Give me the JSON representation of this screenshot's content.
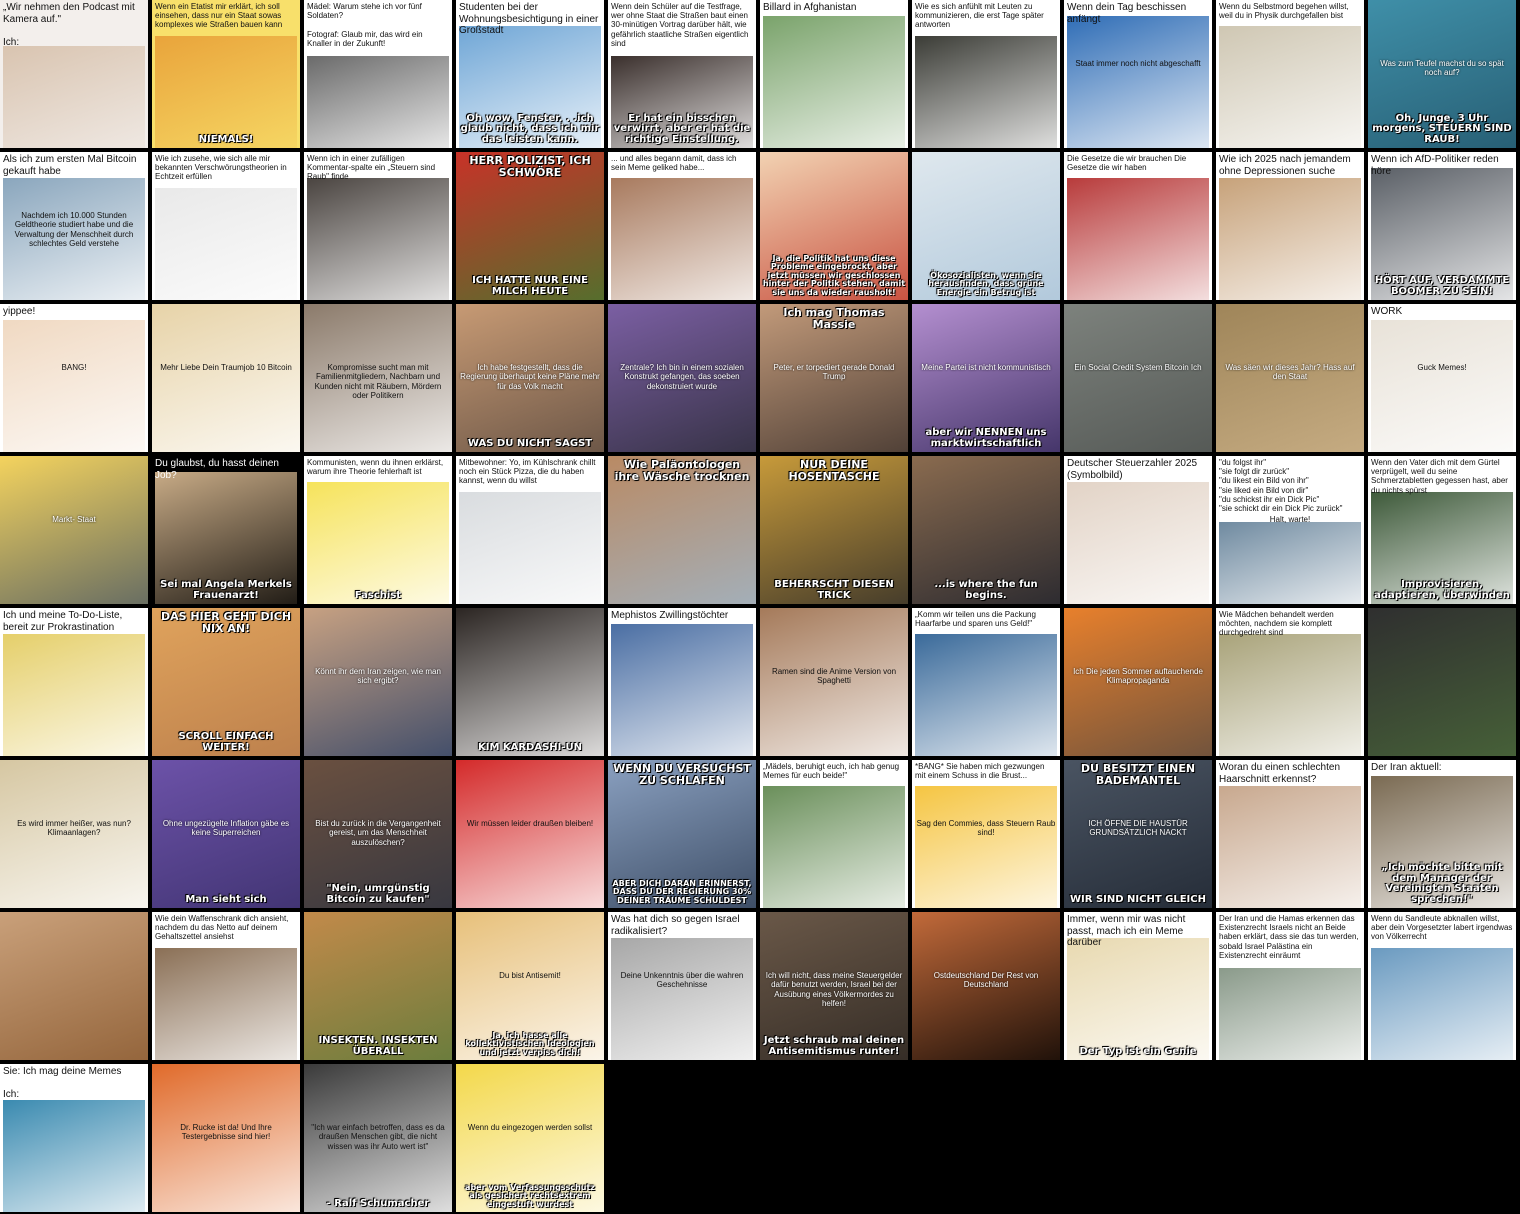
{
  "gallery": {
    "tiles": [
      {
        "top": "",
        "cap": "„Wir nehmen den Podcast mit Kamera auf.\"\n\nIch:",
        "bot": "",
        "mid": "",
        "bg": "#f3efec",
        "art": "#d9c4b0"
      },
      {
        "top": "",
        "cap": "Wenn ein Etatist mir erklärt, ich soll einsehen, dass nur ein Staat sowas komplexes wie Straßen bauen kann",
        "bot": "NIEMALS!",
        "mid": "",
        "bg": "#f8e06b",
        "art": "#e9a43b"
      },
      {
        "top": "",
        "cap": "Mädel: Warum stehe ich vor fünf Soldaten?\n\nFotograf: Glaub mir, das wird ein Knaller in der Zukunft!",
        "bot": "",
        "mid": "",
        "bg": "#ffffff",
        "art": "#6a6a6a"
      },
      {
        "top": "",
        "cap": "Studenten bei der Wohnungsbesichtigung in einer Großstadt",
        "bot": "Oh wow, Fenster. . .ich glaub nicht, dass ich mir das leisten kann.",
        "mid": "",
        "bg": "#ffffff",
        "art": "#6fa6d6"
      },
      {
        "top": "",
        "cap": "Wenn dein Schüler auf die Testfrage, wer ohne Staat die Straßen baut einen 30-minütigen Vortrag darüber hält, wie gefährlich staatliche Straßen eigentlich sind",
        "bot": "Er hat ein bisschen verwirrt, aber er hat die richtige Einstellung.",
        "mid": "",
        "bg": "#ffffff",
        "art": "#3a2f2c"
      },
      {
        "top": "",
        "cap": "Billard in Afghanistan",
        "bot": "",
        "mid": "",
        "bg": "#ffffff",
        "art": "#7aa36b"
      },
      {
        "top": "",
        "cap": "Wie es sich anfühlt mit Leuten zu kommunizieren, die erst Tage später antworten",
        "bot": "",
        "mid": "",
        "bg": "#ffffff",
        "art": "#3b3c36"
      },
      {
        "top": "",
        "cap": "Wenn dein Tag beschissen anfängt",
        "bot": "",
        "mid": "Staat immer noch nicht abgeschafft",
        "bg": "#ffffff",
        "art": "#2f6db6"
      },
      {
        "top": "",
        "cap": "Wenn du Selbstmord begehen willst, weil du in Physik durchgefallen bist",
        "bot": "",
        "mid": "",
        "bg": "#ffffff",
        "art": "#cfc7b3"
      },
      {
        "top": "",
        "cap": "",
        "bot": "Oh, Junge, 3 Uhr morgens, STEUERN SIND RAUB!",
        "mid": "Was zum Teufel machst du so spät noch auf?",
        "bg": "#23566b",
        "art": "#3f8fa8"
      },
      {
        "top": "",
        "cap": "Als ich zum ersten Mal Bitcoin gekauft habe",
        "bot": "",
        "mid": "Nachdem ich 10.000 Stunden Geldtheorie studiert habe und die Verwaltung der Menschheit durch schlechtes Geld verstehe",
        "bg": "#ffffff",
        "art": "#8aa6bd"
      },
      {
        "top": "",
        "cap": "Wie ich zusehe, wie sich alle mir bekannten Verschwörungstheorien in Echtzeit erfüllen",
        "bot": "",
        "mid": "",
        "bg": "#ffffff",
        "art": "#e9e9e9"
      },
      {
        "top": "",
        "cap": "Wenn ich in einer zufälligen Kommentar-spalte ein „Steuern sind Raub\" finde",
        "bot": "",
        "mid": "",
        "bg": "#ffffff",
        "art": "#4a4440"
      },
      {
        "top": "HERR POLIZIST, ICH SCHWÖRE",
        "cap": "",
        "bot": "ICH HATTE NUR EINE MILCH HEUTE",
        "mid": "",
        "bg": "#3f7a2e",
        "art": "#c83228"
      },
      {
        "top": "",
        "cap": "... und alles begann damit, dass ich sein Meme geliked habe...",
        "bot": "",
        "mid": "",
        "bg": "#ffffff",
        "art": "#a87a5e"
      },
      {
        "top": "",
        "cap": "",
        "bot": "Ja, die Politik hat uns diese Probleme eingebrockt, aber jetzt müssen wir geschlossen hinter der Politik stehen, damit sie uns da wieder rausholt!",
        "mid": "",
        "bg": "#c0392b",
        "art": "#f2d2b2"
      },
      {
        "top": "",
        "cap": "",
        "bot": "Ökosozialisten, wenn sie herausfinden, dass grüne Energie ein Betrug ist",
        "mid": "",
        "bg": "#a9c3d8",
        "art": "#dfe8ee"
      },
      {
        "top": "",
        "cap": "Die Gesetze die wir brauchen        Die Gesetze die wir haben",
        "bot": "",
        "mid": "",
        "bg": "#ffffff",
        "art": "#b83b3b"
      },
      {
        "top": "",
        "cap": "Wie ich 2025 nach jemandem ohne Depressionen suche",
        "bot": "",
        "mid": "",
        "bg": "#ffffff",
        "art": "#c7a27a"
      },
      {
        "top": "",
        "cap": "Wenn ich AfD-Politiker reden höre",
        "bot": "HÖRT AUF, VERDAMMTE BOOMER ZU SEIN!",
        "mid": "",
        "bg": "#ffffff",
        "art": "#5a5f66"
      },
      {
        "top": "",
        "cap": "yippee!",
        "bot": "",
        "mid": "BANG!",
        "bg": "#ffffff",
        "art": "#f0d9c2"
      },
      {
        "top": "",
        "cap": "",
        "bot": "",
        "mid": "Mehr Liebe   Dein Traumjob   10 Bitcoin",
        "bg": "#ffffff",
        "art": "#e7d3a8"
      },
      {
        "top": "",
        "cap": "",
        "bot": "",
        "mid": "Kompromisse sucht man mit Familienmitgliedern, Nachbarn und Kunden\n\nnicht mit Räubern, Mördern oder Politikern",
        "bg": "#ffffff",
        "art": "#8b7a6a"
      },
      {
        "top": "",
        "cap": "",
        "bot": "WAS DU NICHT SAGST",
        "mid": "Ich habe festgestellt, dass die Regierung überhaupt keine Pläne mehr für das Volk macht",
        "bg": "#5b4a3f",
        "art": "#c79a74"
      },
      {
        "top": "",
        "cap": "",
        "bot": "",
        "mid": "Zentrale? Ich bin in einem sozialen Konstrukt gefangen, das soeben dekonstruiert wurde",
        "bg": "#2a2a35",
        "art": "#7b5fa3"
      },
      {
        "top": "Ich mag Thomas Massie",
        "cap": "",
        "bot": "",
        "mid": "Peter, er torpediert gerade Donald Trump",
        "bg": "#3a2f2a",
        "art": "#c29a7a"
      },
      {
        "top": "",
        "cap": "",
        "bot": "aber wir NENNEN uns marktwirtschaftlich",
        "mid": "Meine Partei ist nicht kommunistisch",
        "bg": "#2f2456",
        "art": "#b48fd0"
      },
      {
        "top": "",
        "cap": "",
        "bot": "",
        "mid": "Ein Social Credit System          Bitcoin          Ich",
        "bg": "#4e524f",
        "art": "#7d827d"
      },
      {
        "top": "",
        "cap": "",
        "bot": "",
        "mid": "Was säen wir dieses Jahr?          Hass auf den Staat",
        "bg": "#cdb38a",
        "art": "#9f8559"
      },
      {
        "top": "",
        "cap": "WORK",
        "bot": "",
        "mid": "Guck Memes!",
        "bg": "#ffffff",
        "art": "#e8e2d8"
      },
      {
        "top": "",
        "cap": "",
        "bot": "",
        "mid": "Markt-          Staat",
        "bg": "#4d5a63",
        "art": "#f4d35e"
      },
      {
        "top": "",
        "cap": "Du glaubst, du hasst deinen Job?",
        "bot": "Sei mal Angela Merkels Frauenarzt!",
        "mid": "",
        "bg": "#000000",
        "art": "#c8ab86"
      },
      {
        "top": "",
        "cap": "Kommunisten, wenn du ihnen erklärst, warum ihre Theorie fehlerhaft ist",
        "bot": "Faschist",
        "mid": "",
        "bg": "#ffffff",
        "art": "#f6e35b"
      },
      {
        "top": "",
        "cap": "Mitbewohner: Yo, im Kühlschrank chillt noch ein Stück Pizza, die du haben kannst, wenn du willst",
        "bot": "",
        "mid": "",
        "bg": "#ffffff",
        "art": "#d9dcdf"
      },
      {
        "top": "Wie Paläontologen ihre Wäsche trocknen",
        "cap": "",
        "bot": "",
        "mid": "",
        "bg": "#9fb6c9",
        "art": "#b98a64"
      },
      {
        "top": "NUR DEINE HOSENTASCHE",
        "cap": "",
        "bot": "BEHERRSCHT DIESEN TRICK",
        "mid": "",
        "bg": "#2c2a28",
        "art": "#c79a3a"
      },
      {
        "top": "",
        "cap": "",
        "bot": "...is where the fun begins.",
        "mid": "",
        "bg": "#1b1f2a",
        "art": "#8a6b4f"
      },
      {
        "top": "",
        "cap": "Deutscher Steuerzahler 2025 (Symbolbild)",
        "bot": "",
        "mid": "",
        "bg": "#ffffff",
        "art": "#e2d3c6"
      },
      {
        "top": "",
        "cap": "\"du folgst ihr\"\n\"sie folgt dir zurück\"\n\"du likest ein Bild von ihr\"\n\"sie liked ein Bild von dir\"\n\"du schickst ihr ein Dick Pic\"\n\"sie schickt dir ein Dick Pic zurück\"",
        "bot": "",
        "mid": "Halt, warte!",
        "bg": "#ffffff",
        "art": "#6f8aa0"
      },
      {
        "top": "",
        "cap": "Wenn den Vater dich mit dem Gürtel verprügelt, weil du seine Schmerztabletten gegessen hast, aber du nichts spürst",
        "bot": "Improvisieren, adaptieren, überwinden",
        "mid": "",
        "bg": "#ffffff",
        "art": "#3e5a3a"
      },
      {
        "top": "",
        "cap": "Ich und meine To-Do-Liste, bereit zur Prokrastination",
        "bot": "",
        "mid": "",
        "bg": "#ffffff",
        "art": "#e5cf6a"
      },
      {
        "top": "DAS HIER GEHT DICH NIX AN!",
        "cap": "",
        "bot": "SCROLL EINFACH WEITER!",
        "mid": "",
        "bg": "#b67a4a",
        "art": "#e0a35c"
      },
      {
        "top": "",
        "cap": "",
        "bot": "",
        "mid": "Könnt ihr dem Iran zeigen, wie man sich ergibt?",
        "bg": "#2a3f66",
        "art": "#c7a182"
      },
      {
        "top": "",
        "cap": "",
        "bot": "KIM KARDASHI-UN",
        "mid": "",
        "bg": "#ffffff",
        "art": "#2b2522"
      },
      {
        "top": "",
        "cap": "Mephistos Zwillingstöchter",
        "bot": "",
        "mid": "",
        "bg": "#ffffff",
        "art": "#4a6ea3"
      },
      {
        "top": "",
        "cap": "",
        "bot": "",
        "mid": "Ramen sind die Anime Version von Spaghetti",
        "bg": "#ffffff",
        "art": "#a57a5a"
      },
      {
        "top": "",
        "cap": "„Komm wir teilen uns die Packung Haarfarbe und sparen uns Geld!\"",
        "bot": "",
        "mid": "",
        "bg": "#ffffff",
        "art": "#3a6a9a"
      },
      {
        "top": "",
        "cap": "",
        "bot": "",
        "mid": "Ich          Die jeden Sommer auftauchende Klimapropaganda",
        "bg": "#5a4b40",
        "art": "#e8802c"
      },
      {
        "top": "",
        "cap": "Wie Mädchen behandelt werden möchten, nachdem sie komplett durchgedreht sind",
        "bot": "",
        "mid": "",
        "bg": "#ffffff",
        "art": "#a9a37a"
      },
      {
        "top": "",
        "cap": "",
        "bot": "",
        "mid": "",
        "bg": "#4b6a3a",
        "art": "#2f2f2f"
      },
      {
        "top": "",
        "cap": "",
        "bot": "",
        "mid": "Es wird immer heißer, was nun?          Klimaanlagen?",
        "bg": "#ffffff",
        "art": "#d6c7a2"
      },
      {
        "top": "",
        "cap": "",
        "bot": "Man sieht sich",
        "mid": "Ohne ungezügelte Inflation gäbe es keine Superreichen",
        "bg": "#3a2f6a",
        "art": "#6c52a8"
      },
      {
        "top": "",
        "cap": "",
        "bot": "\"Nein, umrgünstig Bitcoin zu kaufen\"",
        "mid": "Bist du zurück in die Vergangenheit gereist, um das Menschheit auszulöschen?",
        "bg": "#2e3340",
        "art": "#6a5040"
      },
      {
        "top": "",
        "cap": "",
        "bot": "",
        "mid": "Wir müssen leider draußen bleiben!",
        "bg": "#ffffff",
        "art": "#d42a2a"
      },
      {
        "top": "WENN DU VERSUCHST ZU SCHLAFEN",
        "cap": "",
        "bot": "ABER DICH DARAN ERINNERST, DASS DU DER REGIERUNG 30% DEINER TRÄUME SCHULDEST",
        "mid": "",
        "bg": "#2f3e55",
        "art": "#8aa0c0"
      },
      {
        "top": "",
        "cap": "„Mädels, beruhigt euch, ich hab genug Memes für euch beide!\"",
        "bot": "",
        "mid": "",
        "bg": "#ffffff",
        "art": "#6a8f5a"
      },
      {
        "top": "",
        "cap": "*BANG*          Sie haben mich gezwungen mit einem Schuss in die Brust...",
        "bot": "",
        "mid": "Sag den Commies, dass Steuern Raub sind!",
        "bg": "#ffffff",
        "art": "#f5c542"
      },
      {
        "top": "DU BESITZT EINEN BADEMANTEL",
        "cap": "",
        "bot": "WIR SIND NICHT GLEICH",
        "mid": "ICH ÖFFNE DIE HAUSTÜR GRUNDSÄTZLICH NACKT",
        "bg": "#1e2530",
        "art": "#4a5462"
      },
      {
        "top": "",
        "cap": "Woran du einen schlechten Haarschnitt erkennst?",
        "bot": "",
        "mid": "",
        "bg": "#ffffff",
        "art": "#c8a88e"
      },
      {
        "top": "",
        "cap": "Der Iran aktuell:",
        "bot": "„Ich möchte bitte mit dem Manager der Vereinigten Staaten sprechen!\"",
        "mid": "",
        "bg": "#ffffff",
        "art": "#7a6a52"
      },
      {
        "top": "",
        "cap": "",
        "bot": "",
        "mid": "",
        "bg": "#8a5a30",
        "art": "#c9a07a"
      },
      {
        "top": "",
        "cap": "Wie dein Waffenschrank dich ansieht, nachdem du das Netto auf deinem Gehaltszettel ansiehst",
        "bot": "",
        "mid": "",
        "bg": "#ffffff",
        "art": "#8a6f55"
      },
      {
        "top": "",
        "cap": "",
        "bot": "INSEKTEN. INSEKTEN ÜBERALL",
        "mid": "",
        "bg": "#5a7a3a",
        "art": "#c28a4a"
      },
      {
        "top": "",
        "cap": "",
        "bot": "Ja, ich hasse alle kollektivistischen Ideologien und jetzt verpiss dich!",
        "mid": "Du bist Antisemit!",
        "bg": "#ffffff",
        "art": "#e7c07a"
      },
      {
        "top": "",
        "cap": "Was hat dich so gegen Israel radikalisiert?",
        "bot": "",
        "mid": "Deine Unkenntnis über die wahren Geschehnisse",
        "bg": "#ffffff",
        "art": "#a7a7a7"
      },
      {
        "top": "",
        "cap": "",
        "bot": "Jetzt schraub mal deinen Antisemitismus runter!",
        "mid": "Ich will nicht, dass meine Steuergelder dafür benutzt werden, Israel bei der Ausübung eines Völkermordes zu helfen!",
        "bg": "#2b2520",
        "art": "#6a5848"
      },
      {
        "top": "",
        "cap": "",
        "bot": "",
        "mid": "Ostdeutschland          Der Rest von Deutschland",
        "bg": "#000000",
        "art": "#c26a3a"
      },
      {
        "top": "",
        "cap": "Immer, wenn mir was nicht passt, mach ich ein Meme darüber",
        "bot": "Der Typ ist ein Genie",
        "mid": "",
        "bg": "#ffffff",
        "art": "#e8d9b0"
      },
      {
        "top": "",
        "cap": "Der Iran und die Hamas erkennen das Existenzrecht Israels nicht an          Beide haben erklärt, dass sie das tun werden, sobald Israel Palästina ein Existenzrecht einräumt",
        "bot": "",
        "mid": "",
        "bg": "#ffffff",
        "art": "#8a9a8a"
      },
      {
        "top": "",
        "cap": "Wenn du Sandleute abknallen willst, aber dein Vorgesetzter labert irgendwas von Völkerrecht",
        "bot": "",
        "mid": "",
        "bg": "#ffffff",
        "art": "#6a9ac0"
      },
      {
        "top": "",
        "cap": "Sie: Ich mag deine Memes\n\nIch:",
        "bot": "",
        "mid": "",
        "bg": "#ffffff",
        "art": "#3a8ab0"
      },
      {
        "top": "",
        "cap": "",
        "bot": "",
        "mid": "Dr. Rucke ist da!          Und Ihre Testergebnisse sind hier!",
        "bg": "#ffffff",
        "art": "#e06a2a"
      },
      {
        "top": "",
        "cap": "",
        "bot": "- Ralf Schumacher",
        "mid": "\"Ich war einfach betroffen, dass es da draußen Menschen gibt, die nicht wissen was ihr Auto wert ist\"",
        "bg": "#ffffff",
        "art": "#3a3a3a"
      },
      {
        "top": "",
        "cap": "",
        "bot": "aber vom Verfassungsschutz als gesichert rechtsextrem eingestuft wurdest",
        "mid": "Wenn du eingezogen werden sollst",
        "bg": "#ffffff",
        "art": "#f3d84a"
      }
    ]
  }
}
